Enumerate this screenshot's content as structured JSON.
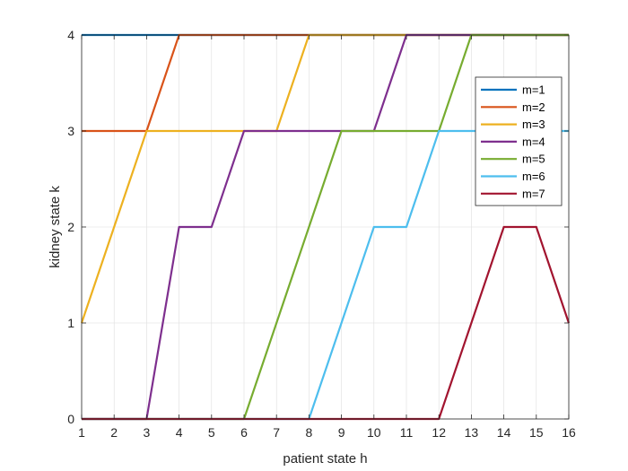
{
  "chart_data": {
    "type": "line",
    "title": "",
    "xlabel": "patient state h",
    "ylabel": "kidney state k",
    "xlim": [
      1,
      16
    ],
    "ylim": [
      0,
      4
    ],
    "xticks": [
      1,
      2,
      3,
      4,
      5,
      6,
      7,
      8,
      9,
      10,
      11,
      12,
      13,
      14,
      15,
      16
    ],
    "yticks": [
      0,
      1,
      2,
      3,
      4
    ],
    "grid": true,
    "legend_position": "upper-right",
    "x": [
      1,
      2,
      3,
      4,
      5,
      6,
      7,
      8,
      9,
      10,
      11,
      12,
      13,
      14,
      15,
      16
    ],
    "series": [
      {
        "name": "m=1",
        "color": "#0072BD",
        "values": [
          4,
          4,
          4,
          4,
          4,
          4,
          4,
          4,
          4,
          4,
          4,
          4,
          4,
          4,
          4,
          4
        ]
      },
      {
        "name": "m=2",
        "color": "#D95319",
        "values": [
          3,
          3,
          3,
          4,
          4,
          4,
          4,
          4,
          4,
          4,
          4,
          4,
          4,
          4,
          4,
          4
        ]
      },
      {
        "name": "m=3",
        "color": "#EDB120",
        "values": [
          1,
          2,
          3,
          3,
          3,
          3,
          3,
          4,
          4,
          4,
          4,
          4,
          4,
          4,
          4,
          4
        ]
      },
      {
        "name": "m=4",
        "color": "#7E2F8E",
        "values": [
          0,
          0,
          0,
          2,
          2,
          3,
          3,
          3,
          3,
          3,
          4,
          4,
          4,
          4,
          4,
          4
        ]
      },
      {
        "name": "m=5",
        "color": "#77AC30",
        "values": [
          0,
          0,
          0,
          0,
          0,
          0,
          1,
          2,
          3,
          3,
          3,
          3,
          4,
          4,
          4,
          4
        ]
      },
      {
        "name": "m=6",
        "color": "#4DBEEE",
        "values": [
          0,
          0,
          0,
          0,
          0,
          0,
          0,
          0,
          1,
          2,
          2,
          3,
          3,
          3,
          3,
          3
        ]
      },
      {
        "name": "m=7",
        "color": "#A2142F",
        "values": [
          0,
          0,
          0,
          0,
          0,
          0,
          0,
          0,
          0,
          0,
          0,
          0,
          1,
          2,
          2,
          1
        ]
      }
    ]
  }
}
